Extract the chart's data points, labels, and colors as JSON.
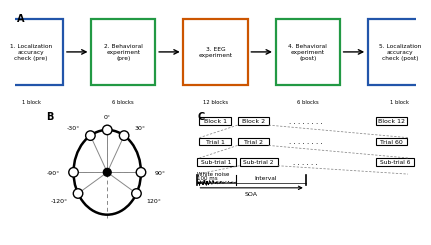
{
  "panel_A": {
    "boxes": [
      {
        "label": "1. Localization\naccuracy\ncheck (pre)",
        "color": "#2255aa"
      },
      {
        "label": "2. Behavioral\nexperiment\n(pre)",
        "color": "#229944"
      },
      {
        "label": "3. EEG\nexperiment",
        "color": "#cc5500"
      },
      {
        "label": "4. Behavioral\nexperiment\n(post)",
        "color": "#229944"
      },
      {
        "label": "5. Localization\naccuracy\ncheck (post)",
        "color": "#2255aa"
      }
    ],
    "block_labels": [
      "1 block",
      "6 blocks",
      "12 blocks",
      "6 blocks",
      "1 block"
    ]
  },
  "bg_color": "#ffffff"
}
